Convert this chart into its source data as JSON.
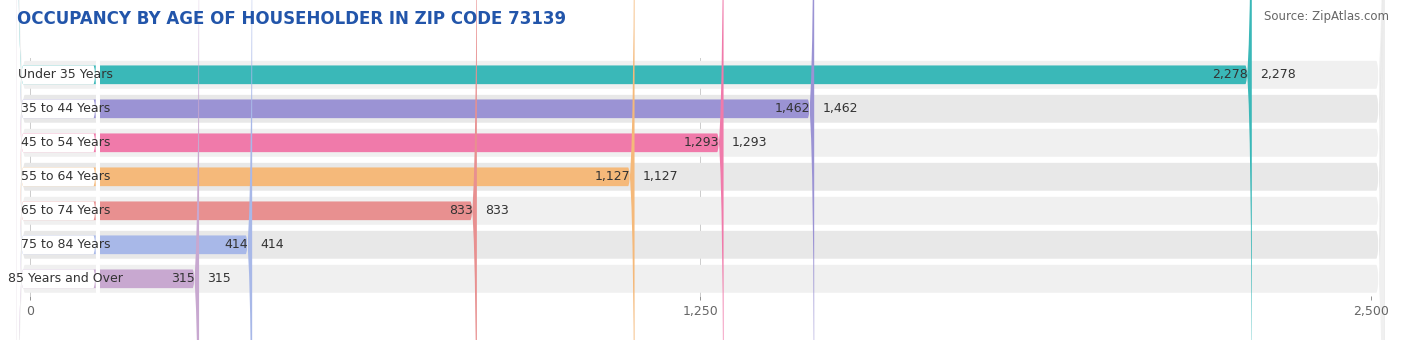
{
  "title": "OCCUPANCY BY AGE OF HOUSEHOLDER IN ZIP CODE 73139",
  "source": "Source: ZipAtlas.com",
  "categories": [
    "Under 35 Years",
    "35 to 44 Years",
    "45 to 54 Years",
    "55 to 64 Years",
    "65 to 74 Years",
    "75 to 84 Years",
    "85 Years and Over"
  ],
  "values": [
    2278,
    1462,
    1293,
    1127,
    833,
    414,
    315
  ],
  "bar_colors": [
    "#3ab8b8",
    "#9b93d4",
    "#f07aaa",
    "#f5b97a",
    "#e89090",
    "#a8b8e8",
    "#c8a8d0"
  ],
  "row_bg_color": "#efefef",
  "row_bg_color2": "#e8e8e8",
  "xlim_max": 2500,
  "xticks": [
    0,
    1250,
    2500
  ],
  "background_color": "#ffffff",
  "title_fontsize": 12,
  "source_fontsize": 8.5,
  "label_fontsize": 9,
  "value_fontsize": 9
}
